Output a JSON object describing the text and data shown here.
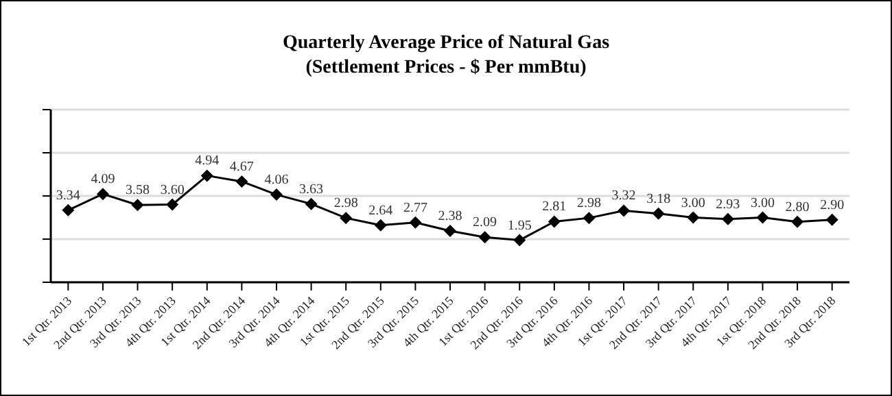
{
  "chart_data": {
    "type": "line",
    "title": "Quarterly Average Price of Natural Gas",
    "subtitle": "(Settlement Prices - $ Per mmBtu)",
    "categories": [
      "1st Qtr. 2013",
      "2nd Qtr. 2013",
      "3rd Qtr. 2013",
      "4th Qtr. 2013",
      "1st Qtr. 2014",
      "2nd Qtr. 2014",
      "3rd Qtr. 2014",
      "4th Qtr. 2014",
      "1st Qtr. 2015",
      "2nd Qtr. 2015",
      "3rd Qtr. 2015",
      "4th Qtr. 2015",
      "1st Qtr. 2016",
      "2nd Qtr. 2016",
      "3rd Qtr. 2016",
      "4th Qtr. 2016",
      "1st Qtr. 2017",
      "2nd Qtr. 2017",
      "3rd Qtr. 2017",
      "4th Qtr. 2017",
      "1st Qtr. 2018",
      "2nd Qtr. 2018",
      "3rd Qtr. 2018"
    ],
    "series": [
      {
        "color": "#000000",
        "values": [
          3.34,
          4.09,
          3.58,
          3.6,
          4.94,
          4.67,
          4.06,
          3.63,
          2.98,
          2.64,
          2.77,
          2.38,
          2.09,
          1.95,
          2.81,
          2.98,
          3.32,
          3.18,
          3.0,
          2.93,
          3.0,
          2.8,
          2.9
        ],
        "value_labels": [
          "3.34",
          "4.09",
          "3.58",
          "3.60",
          "4.94",
          "4.67",
          "4.06",
          "3.63",
          "2.98",
          "2.64",
          "2.77",
          "2.38",
          "2.09",
          "1.95",
          "2.81",
          "2.98",
          "3.32",
          "3.18",
          "3.00",
          "2.93",
          "3.00",
          "2.80",
          "2.90"
        ]
      }
    ],
    "ylim": [
      0,
      8
    ],
    "yticks": [
      {
        "value": 0,
        "label": null
      },
      {
        "value": 2,
        "label": null
      },
      {
        "value": 4,
        "label": null
      },
      {
        "value": 6,
        "label": null
      },
      {
        "value": 8,
        "label": null
      }
    ],
    "tick_labels": "x",
    "grid": "y",
    "legend": false,
    "marker": "diamond",
    "line_style": "solid"
  }
}
